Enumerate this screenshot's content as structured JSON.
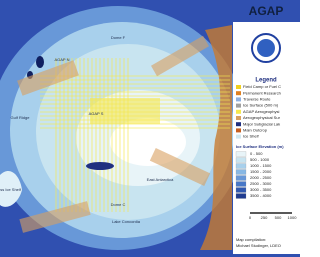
{
  "logo": "AGAP",
  "legend": {
    "title": "Legend",
    "items": [
      {
        "label": "Field Camp or Fuel C",
        "color": "#f0d020"
      },
      {
        "label": "Permanent Research",
        "color": "#e08020"
      },
      {
        "label": "Traverse Route",
        "color": "#90b0e0"
      },
      {
        "label": "Ice Surface (500 m)",
        "color": "#a0a0a0"
      },
      {
        "label": "AGAP Aerogeophysi",
        "color": "#f5e850"
      },
      {
        "label": "Aerogeophysical Sur",
        "color": "#d8a060"
      },
      {
        "label": "Major Subglacial Lak",
        "color": "#203080"
      },
      {
        "label": "Main Outcrop",
        "color": "#c86020"
      },
      {
        "label": "Ice Shelf",
        "color": "#d0e8f0"
      }
    ]
  },
  "elevation": {
    "title": "Ice Surface Elevation (m)",
    "ranges": [
      {
        "label": "0 - 500",
        "color": "#e8f4f8"
      },
      {
        "label": "500 - 1000",
        "color": "#c8e4f0"
      },
      {
        "label": "1000 - 1500",
        "color": "#a8d0ec"
      },
      {
        "label": "1500 - 2000",
        "color": "#88b8e4"
      },
      {
        "label": "2000 - 2500",
        "color": "#6898d8"
      },
      {
        "label": "2500 - 3000",
        "color": "#4878c8"
      },
      {
        "label": "3000 - 3500",
        "color": "#3058b0"
      },
      {
        "label": "3500 - 4000",
        "color": "#203c90"
      }
    ]
  },
  "scale": {
    "ticks": [
      "0",
      "250",
      "500",
      "1000"
    ]
  },
  "credit": [
    "Map compilation:",
    "Michael Studinger, LDEO"
  ],
  "labels": [
    "Dome F",
    "AGAP N",
    "AGAP S",
    "Gulf Ridge",
    "East Antarctica",
    "Dome C",
    "Lake Concordia",
    "Ross Ice Shelf"
  ]
}
